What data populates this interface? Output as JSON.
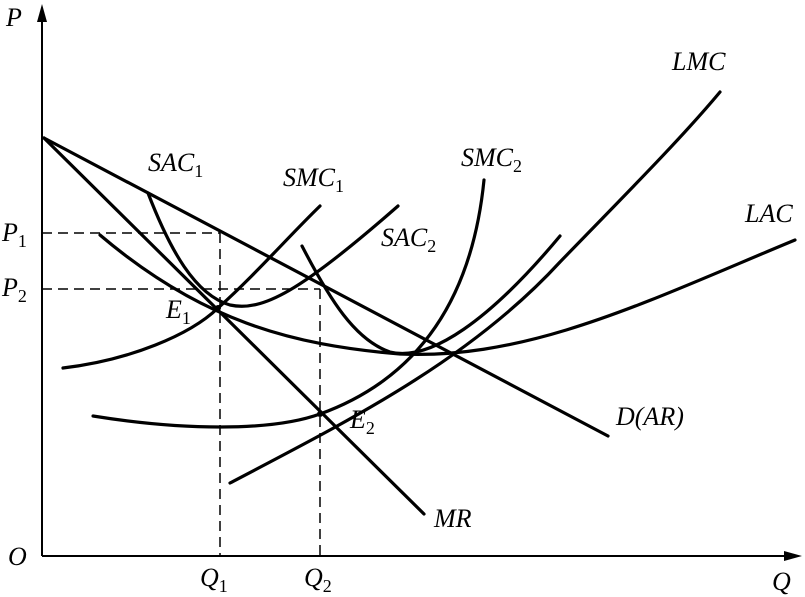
{
  "axes": {
    "y_label": "P",
    "x_label": "Q",
    "origin_label": "O"
  },
  "ticks": {
    "p1": {
      "main": "P",
      "sub": "1"
    },
    "p2": {
      "main": "P",
      "sub": "2"
    },
    "q1": {
      "main": "Q",
      "sub": "1"
    },
    "q2": {
      "main": "Q",
      "sub": "2"
    }
  },
  "curves": {
    "lmc": {
      "main": "LMC",
      "sub": ""
    },
    "lac": {
      "main": "LAC",
      "sub": ""
    },
    "sac1": {
      "main": "SAC",
      "sub": "1"
    },
    "smc1": {
      "main": "SMC",
      "sub": "1"
    },
    "smc2": {
      "main": "SMC",
      "sub": "2"
    },
    "sac2": {
      "main": "SAC",
      "sub": "2"
    },
    "demand": {
      "main": "D(AR)",
      "sub": ""
    },
    "mr": {
      "main": "MR",
      "sub": ""
    }
  },
  "points": {
    "e1": {
      "main": "E",
      "sub": "1"
    },
    "e2": {
      "main": "E",
      "sub": "2"
    }
  }
}
